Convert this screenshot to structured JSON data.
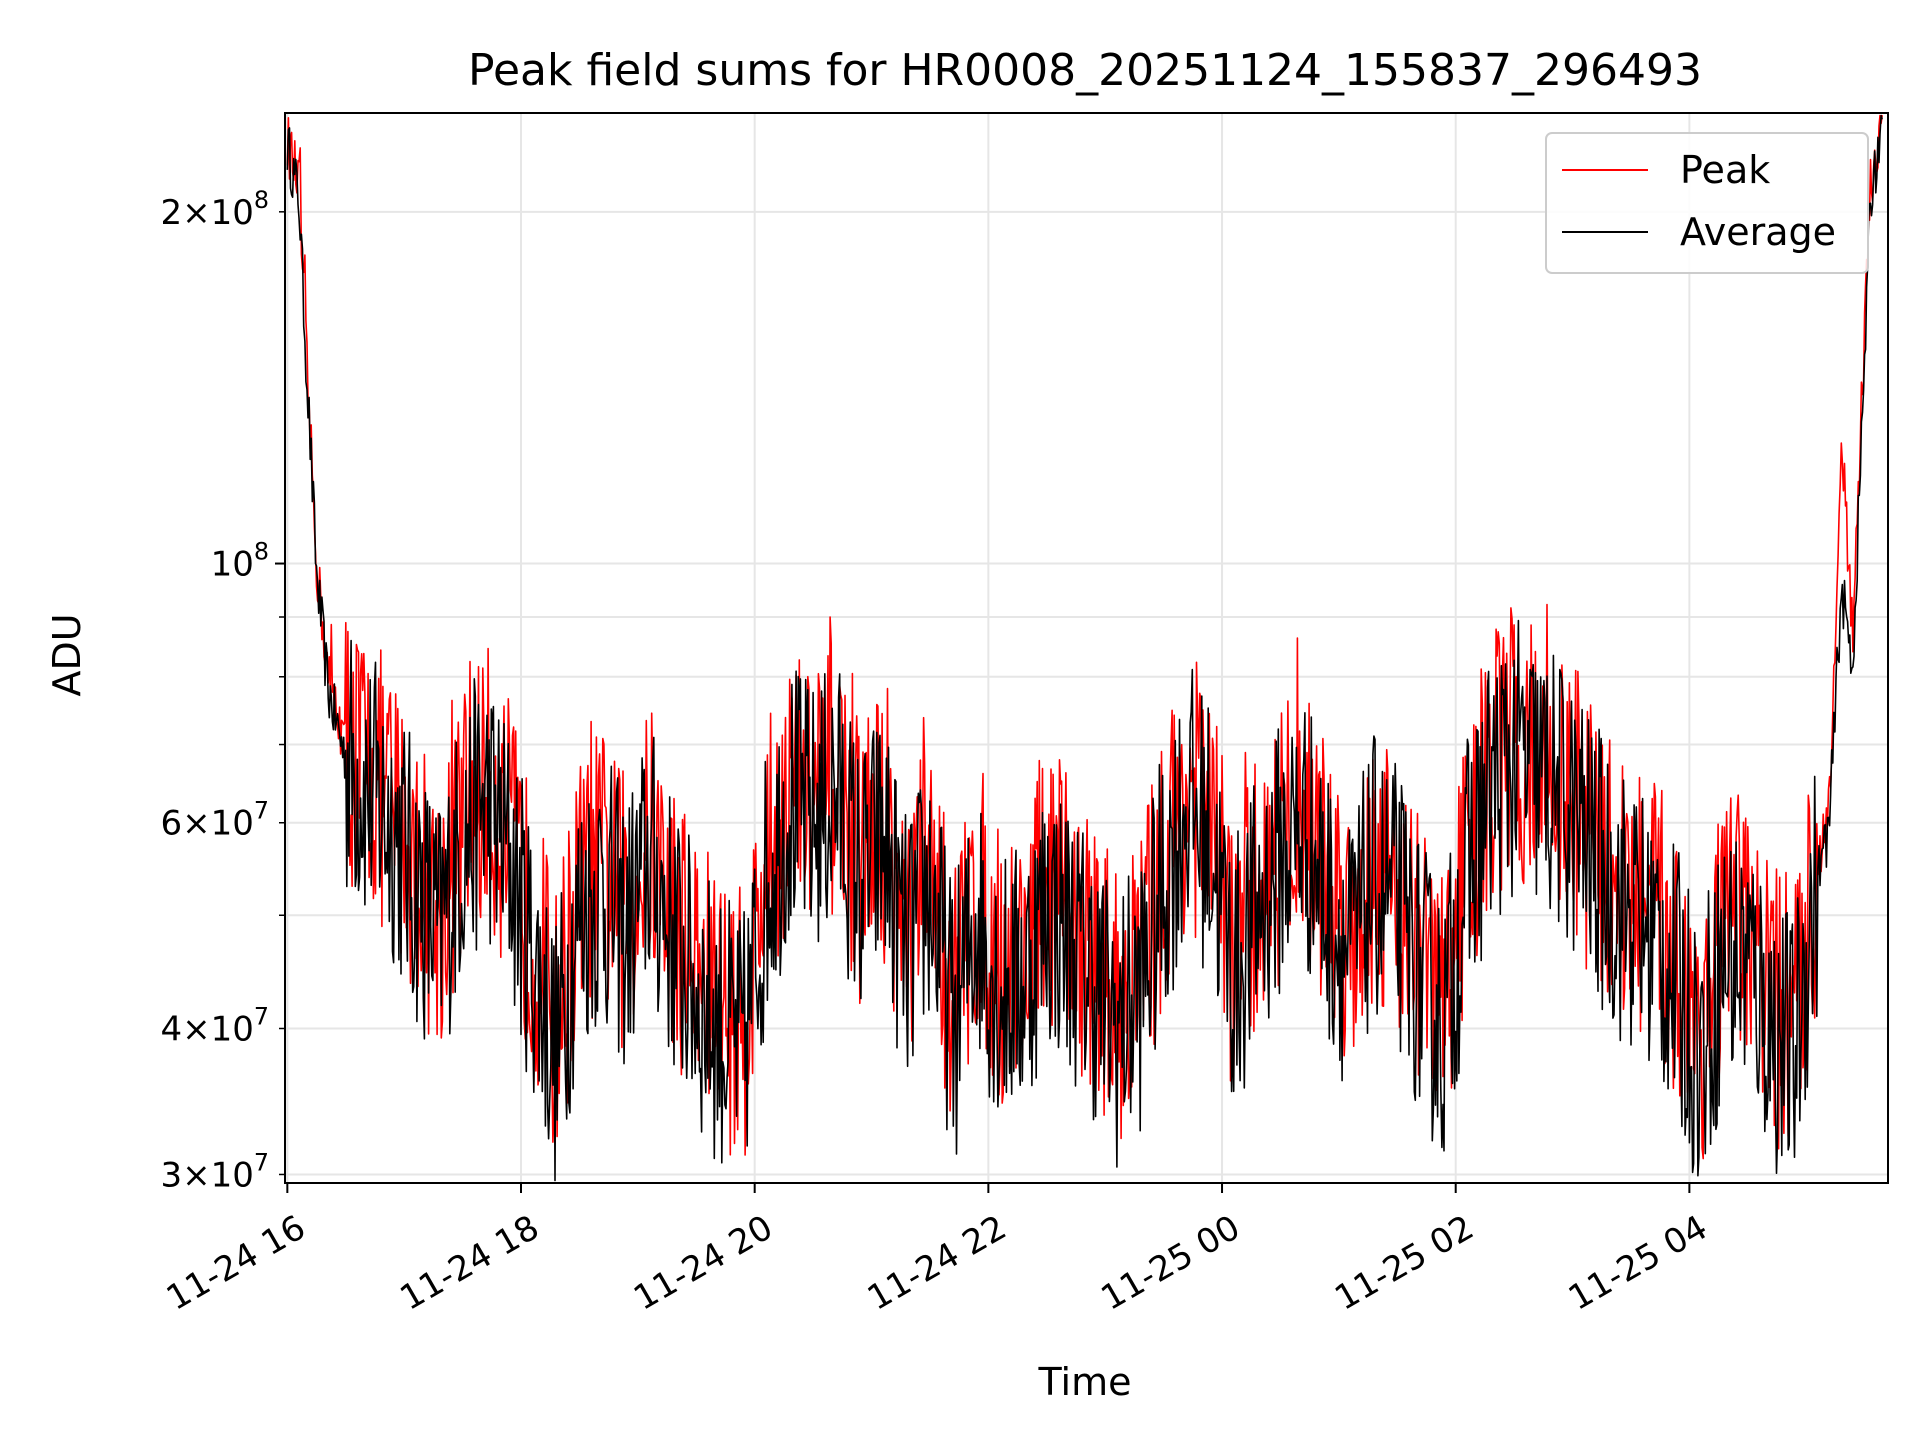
{
  "chart_data": {
    "type": "line",
    "title": "Peak field sums for HR0008_20251124_155837_296493",
    "xlabel": "Time",
    "ylabel": "ADU",
    "yscale": "log",
    "ylim": [
      29500000,
      243000000
    ],
    "xlim_hours_from_1600": [
      -0.02,
      13.7
    ],
    "grid": true,
    "legend_loc": "upper right",
    "x_ticks": [
      {
        "hours": 0,
        "label": "11-24 16"
      },
      {
        "hours": 2,
        "label": "11-24 18"
      },
      {
        "hours": 4,
        "label": "11-24 20"
      },
      {
        "hours": 6,
        "label": "11-24 22"
      },
      {
        "hours": 8,
        "label": "11-25 00"
      },
      {
        "hours": 10,
        "label": "11-25 02"
      },
      {
        "hours": 12,
        "label": "11-25 04"
      }
    ],
    "y_major_ticks": [
      {
        "value": 100000000,
        "mant": "",
        "base": "10",
        "exp": "8"
      }
    ],
    "y_minor_ticks": [
      {
        "value": 30000000,
        "mant": "3",
        "base": "10",
        "exp": "7"
      },
      {
        "value": 40000000,
        "mant": "4",
        "base": "10",
        "exp": "7"
      },
      {
        "value": 50000000,
        "mant": "",
        "base": "",
        "exp": ""
      },
      {
        "value": 60000000,
        "mant": "6",
        "base": "10",
        "exp": "7"
      },
      {
        "value": 70000000,
        "mant": "",
        "base": "",
        "exp": ""
      },
      {
        "value": 80000000,
        "mant": "",
        "base": "",
        "exp": ""
      },
      {
        "value": 90000000,
        "mant": "",
        "base": "",
        "exp": ""
      },
      {
        "value": 200000000,
        "mant": "2",
        "base": "10",
        "exp": "8"
      }
    ],
    "series": [
      {
        "name": "Peak",
        "color": "#ff0000",
        "x_hours": [
          0.0,
          0.1,
          0.15,
          0.25,
          0.35,
          0.5,
          0.7,
          0.9,
          1.1,
          1.3,
          1.5,
          1.7,
          1.9,
          2.1,
          2.3,
          2.5,
          2.7,
          2.9,
          3.1,
          3.3,
          3.5,
          3.7,
          3.9,
          4.1,
          4.3,
          4.5,
          4.7,
          4.9,
          5.1,
          5.3,
          5.5,
          5.7,
          5.9,
          6.1,
          6.3,
          6.5,
          6.7,
          6.9,
          7.1,
          7.3,
          7.5,
          7.7,
          7.9,
          8.1,
          8.3,
          8.5,
          8.7,
          8.9,
          9.1,
          9.3,
          9.5,
          9.7,
          9.9,
          10.1,
          10.3,
          10.5,
          10.7,
          10.9,
          11.1,
          11.3,
          11.5,
          11.7,
          11.9,
          12.1,
          12.3,
          12.5,
          12.7,
          12.9,
          13.0,
          13.1,
          13.2,
          13.3,
          13.4,
          13.5,
          13.55,
          13.65
        ],
        "values": [
          230000000,
          210000000,
          160000000,
          100000000,
          80000000,
          70000000,
          66000000,
          62000000,
          55000000,
          50000000,
          60000000,
          65000000,
          58000000,
          48000000,
          40000000,
          52000000,
          55000000,
          50000000,
          58000000,
          50000000,
          45000000,
          42000000,
          40000000,
          55000000,
          65000000,
          62000000,
          66000000,
          55000000,
          60000000,
          48000000,
          55000000,
          42000000,
          52000000,
          45000000,
          46000000,
          53000000,
          50000000,
          46000000,
          42000000,
          45000000,
          55000000,
          65000000,
          60000000,
          46000000,
          52000000,
          58000000,
          62000000,
          53000000,
          48000000,
          56000000,
          53000000,
          46000000,
          42000000,
          56000000,
          66000000,
          70000000,
          68000000,
          65000000,
          60000000,
          55000000,
          52000000,
          50000000,
          45000000,
          40000000,
          48000000,
          48000000,
          42000000,
          40000000,
          48000000,
          56000000,
          62000000,
          130000000,
          85000000,
          160000000,
          210000000,
          242000000
        ]
      },
      {
        "name": "Average",
        "color": "#000000",
        "x_hours": [
          0.0,
          0.1,
          0.15,
          0.25,
          0.35,
          0.5,
          0.7,
          0.9,
          1.1,
          1.3,
          1.5,
          1.7,
          1.9,
          2.1,
          2.3,
          2.5,
          2.7,
          2.9,
          3.1,
          3.3,
          3.5,
          3.7,
          3.9,
          4.1,
          4.3,
          4.5,
          4.7,
          4.9,
          5.1,
          5.3,
          5.5,
          5.7,
          5.9,
          6.1,
          6.3,
          6.5,
          6.7,
          6.9,
          7.1,
          7.3,
          7.5,
          7.7,
          7.9,
          8.1,
          8.3,
          8.5,
          8.7,
          8.9,
          9.1,
          9.3,
          9.5,
          9.7,
          9.9,
          10.1,
          10.3,
          10.5,
          10.7,
          10.9,
          11.1,
          11.3,
          11.5,
          11.7,
          11.9,
          12.1,
          12.3,
          12.5,
          12.7,
          12.9,
          13.0,
          13.1,
          13.2,
          13.3,
          13.4,
          13.5,
          13.55,
          13.65
        ],
        "values": [
          228000000,
          205000000,
          158000000,
          98000000,
          78000000,
          68000000,
          64000000,
          60000000,
          53000000,
          48000000,
          58000000,
          63000000,
          56000000,
          46000000,
          38000000,
          50000000,
          53000000,
          48000000,
          56000000,
          48000000,
          43000000,
          40000000,
          38000000,
          53000000,
          63000000,
          60000000,
          64000000,
          53000000,
          58000000,
          46000000,
          53000000,
          40000000,
          50000000,
          43000000,
          44000000,
          51000000,
          48000000,
          44000000,
          40000000,
          43000000,
          53000000,
          63000000,
          58000000,
          44000000,
          50000000,
          56000000,
          60000000,
          51000000,
          46000000,
          54000000,
          51000000,
          44000000,
          40000000,
          54000000,
          64000000,
          68000000,
          66000000,
          63000000,
          58000000,
          53000000,
          50000000,
          48000000,
          43000000,
          38000000,
          46000000,
          46000000,
          40000000,
          38000000,
          46000000,
          54000000,
          60000000,
          95000000,
          82000000,
          150000000,
          205000000,
          240000000
        ]
      }
    ]
  }
}
